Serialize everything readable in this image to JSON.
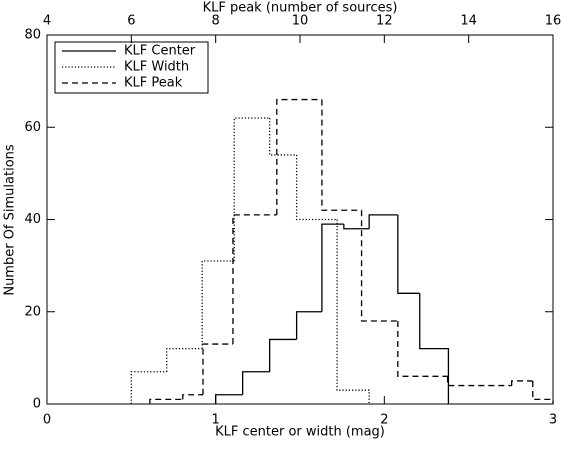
{
  "chart_data": {
    "type": "histogram",
    "xlabel": "KLF center or width (mag)",
    "x2label": "KLF peak (number of sources)",
    "ylabel": "Number Of Simulations",
    "xlim": [
      0,
      3
    ],
    "xticks": [
      0,
      1,
      2,
      3
    ],
    "x2lim": [
      4,
      16
    ],
    "x2ticks": [
      4,
      6,
      8,
      10,
      12,
      14,
      16
    ],
    "ylim": [
      0,
      80
    ],
    "yticks": [
      0,
      20,
      40,
      60,
      80
    ],
    "legend": "upper left",
    "series": [
      {
        "name": "KLF Center",
        "color": "#000000",
        "dash": "solid",
        "bins": [
          1.0,
          1.16,
          1.32,
          1.48,
          1.63,
          1.76,
          1.91,
          2.08,
          2.21,
          2.38
        ],
        "values": [
          2,
          7,
          14,
          20,
          39,
          38,
          41,
          24,
          12
        ]
      },
      {
        "name": "KLF Width",
        "color": "#000000",
        "dash": "dotted",
        "bins": [
          0.5,
          0.71,
          0.92,
          1.11,
          1.32,
          1.48,
          1.72,
          1.91
        ],
        "values": [
          7,
          12,
          31,
          62,
          54,
          40,
          3
        ]
      },
      {
        "name": "KLF Peak",
        "color": "#000000",
        "dash": "dashed",
        "axis": "x2",
        "bins": [
          6.44,
          7.22,
          7.7,
          8.41,
          9.45,
          10.52,
          11.46,
          12.32,
          13.5,
          15.02,
          15.52,
          16.0
        ],
        "values": [
          1,
          2,
          13,
          41,
          66,
          42,
          18,
          6,
          4,
          5,
          1
        ]
      }
    ]
  }
}
